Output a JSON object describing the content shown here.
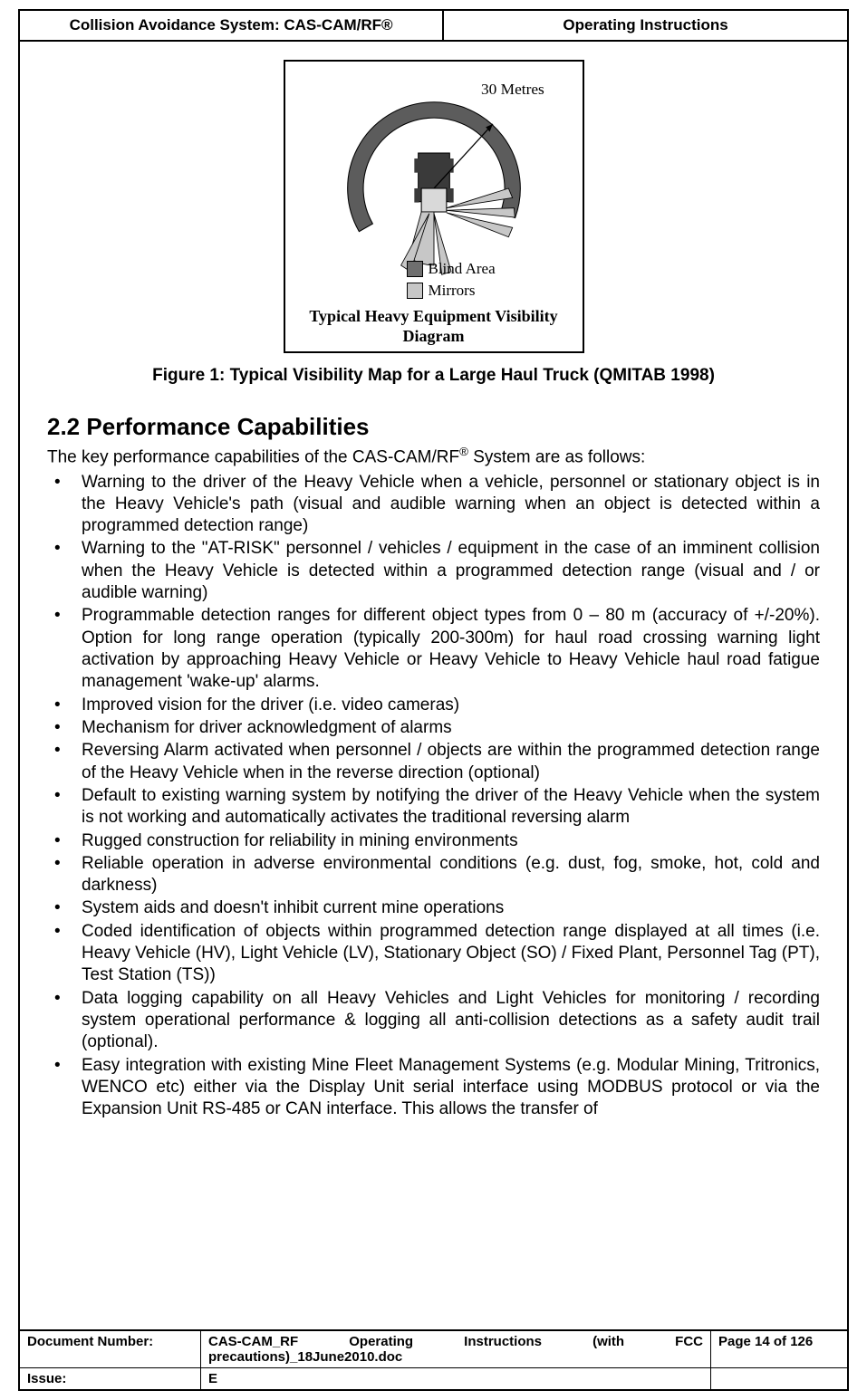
{
  "header": {
    "left": "Collision Avoidance System: CAS-CAM/RF®",
    "right": "Operating Instructions"
  },
  "diagram": {
    "radius_label": "30 Metres",
    "legend": [
      {
        "label": "Blind Area",
        "fill": "#6f6f6f"
      },
      {
        "label": "Mirrors",
        "fill": "#c7c7c7"
      }
    ],
    "title_line1": "Typical Heavy Equipment Visibility",
    "title_line2": "Diagram",
    "colors": {
      "outer_ring": "#5c5c5c",
      "inner_light": "#c7c7c7",
      "truck_body": "#3a3a3a",
      "truck_light": "#d9d9d9",
      "mirror_wedge": "#c7c7c7",
      "stroke": "#000000",
      "background": "#ffffff"
    }
  },
  "figure_caption": "Figure 1:  Typical Visibility Map for a Large Haul Truck (QMITAB 1998)",
  "section": {
    "number": "2.2",
    "title": "Performance Capabilities",
    "intro_pre": "The key performance capabilities of the CAS-CAM/RF",
    "intro_sup": "®",
    "intro_post": " System are as follows:"
  },
  "bullets": [
    "Warning to the driver of the Heavy Vehicle when a vehicle, personnel or stationary object is in the Heavy Vehicle's path (visual and audible warning when an object is detected within a programmed detection range)",
    "Warning to the \"AT-RISK\" personnel / vehicles / equipment in the case of an imminent collision when the Heavy Vehicle is detected within a programmed detection range (visual and / or audible warning)",
    "Programmable detection ranges for different object types from 0 – 80 m (accuracy of +/-20%). Option for long range operation (typically 200-300m) for haul road crossing warning light activation by approaching Heavy Vehicle or Heavy Vehicle to Heavy Vehicle haul road fatigue management 'wake-up' alarms.",
    "Improved vision for the driver (i.e. video cameras)",
    "Mechanism for driver acknowledgment of alarms",
    "Reversing Alarm activated when personnel / objects are within the programmed detection range of the Heavy Vehicle when in the reverse direction (optional)",
    "Default to existing warning system by notifying the driver of the Heavy Vehicle when the system is not working and automatically activates the traditional reversing alarm",
    "Rugged construction for reliability in mining environments",
    "Reliable operation in adverse environmental conditions (e.g. dust, fog, smoke, hot, cold and darkness)",
    "System aids and doesn't inhibit current mine operations",
    "Coded identification of objects within programmed detection range displayed at all times (i.e. Heavy Vehicle (HV), Light Vehicle (LV), Stationary Object (SO) / Fixed Plant, Personnel Tag (PT), Test Station (TS))",
    "Data logging capability on all Heavy Vehicles and Light Vehicles for monitoring / recording system operational performance & logging all anti-collision detections as a safety audit trail (optional).",
    "Easy integration with existing Mine Fleet Management Systems (e.g. Modular Mining, Tritronics, WENCO etc) either via the Display Unit serial interface using MODBUS protocol or via the Expansion Unit RS-485 or CAN interface. This allows the transfer of"
  ],
  "footer": {
    "doc_number_label": "Document Number:",
    "doc_number_value": "CAS-CAM_RF Operating Instructions (with FCC precautions)_18June2010.doc",
    "page_label": "Page 14 of  126",
    "issue_label": "Issue:",
    "issue_value": "E"
  }
}
